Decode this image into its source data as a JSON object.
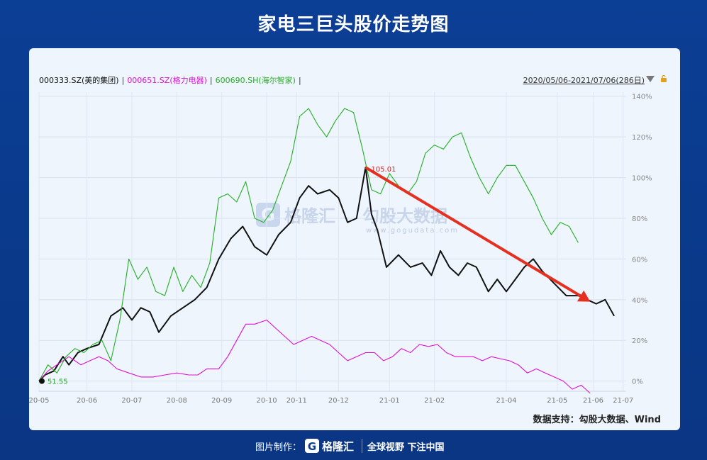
{
  "page": {
    "title": "家电三巨头股价走势图"
  },
  "legend": {
    "items": [
      {
        "label": "000333.SZ(美的集团)",
        "color": "#111111"
      },
      {
        "label": "000651.SZ(格力电器)",
        "color": "#e010d0"
      },
      {
        "label": "600690.SH(海尔智家)",
        "color": "#22b022"
      }
    ],
    "separator": "|",
    "date_range": "2020/05/06-2021/07/06(286日)"
  },
  "annotations": {
    "peak_label": "105.01",
    "start_label": "51.55"
  },
  "source": "数据支持：勾股大数据、Wind",
  "footer": {
    "credit": "图片制作：",
    "logo_text": "格隆汇",
    "slogan": "全球视野 下注中国"
  },
  "watermark": {
    "brand_cn": "格隆汇",
    "brand_cn2": "勾股大数据",
    "url": "www.gogudata.com"
  },
  "colors": {
    "background": "#0b3f95",
    "card": "#eef5fd",
    "trend_arrow": "#e53020"
  },
  "chart_data": {
    "type": "line",
    "title": "家电三巨头股价走势图",
    "x_ticks": [
      "20-05",
      "20-06",
      "20-07",
      "20-08",
      "20-09",
      "20-10",
      "20-11",
      "20-12",
      "21-01",
      "21-02",
      "21-04",
      "21-05",
      "21-06",
      "21-07"
    ],
    "y_ticks": [
      "0%",
      "20%",
      "40%",
      "60%",
      "80%",
      "100%",
      "120%",
      "140%"
    ],
    "ylim": [
      -5,
      142
    ],
    "y_unit": "%",
    "grid": true,
    "legend_position": "top-left",
    "series": [
      {
        "name": "000333.SZ(美的集团)",
        "color": "#111111",
        "points": [
          [
            0,
            0
          ],
          [
            0.02,
            3
          ],
          [
            0.05,
            5
          ],
          [
            0.08,
            12
          ],
          [
            0.1,
            8
          ],
          [
            0.13,
            14
          ],
          [
            0.16,
            16
          ],
          [
            0.2,
            18
          ],
          [
            0.24,
            32
          ],
          [
            0.28,
            36
          ],
          [
            0.31,
            30
          ],
          [
            0.34,
            36
          ],
          [
            0.37,
            34
          ],
          [
            0.4,
            24
          ],
          [
            0.44,
            32
          ],
          [
            0.48,
            36
          ],
          [
            0.52,
            40
          ],
          [
            0.56,
            46
          ],
          [
            0.6,
            60
          ],
          [
            0.64,
            70
          ],
          [
            0.68,
            76
          ],
          [
            0.72,
            66
          ],
          [
            0.76,
            62
          ],
          [
            0.8,
            72
          ],
          [
            0.84,
            78
          ],
          [
            0.87,
            90
          ],
          [
            0.9,
            96
          ],
          [
            0.93,
            92
          ],
          [
            0.97,
            94
          ],
          [
            1.0,
            90
          ],
          [
            1.03,
            78
          ],
          [
            1.06,
            80
          ],
          [
            1.09,
            105.01
          ],
          [
            1.11,
            82
          ],
          [
            1.13,
            74
          ],
          [
            1.16,
            56
          ],
          [
            1.2,
            62
          ],
          [
            1.24,
            56
          ],
          [
            1.28,
            58
          ],
          [
            1.31,
            52
          ],
          [
            1.34,
            64
          ],
          [
            1.37,
            56
          ],
          [
            1.4,
            52
          ],
          [
            1.43,
            58
          ],
          [
            1.46,
            56
          ],
          [
            1.5,
            44
          ],
          [
            1.53,
            50
          ],
          [
            1.56,
            44
          ],
          [
            1.59,
            50
          ],
          [
            1.62,
            56
          ],
          [
            1.65,
            60
          ],
          [
            1.68,
            54
          ],
          [
            1.72,
            48
          ],
          [
            1.76,
            42
          ],
          [
            1.8,
            42
          ],
          [
            1.83,
            40
          ],
          [
            1.86,
            38
          ],
          [
            1.89,
            40
          ],
          [
            1.92,
            32
          ]
        ]
      },
      {
        "name": "000651.SZ(格力电器)",
        "color": "#e010d0",
        "points": [
          [
            0,
            0
          ],
          [
            0.03,
            5
          ],
          [
            0.06,
            8
          ],
          [
            0.1,
            12
          ],
          [
            0.14,
            8
          ],
          [
            0.17,
            10
          ],
          [
            0.2,
            12
          ],
          [
            0.23,
            10
          ],
          [
            0.26,
            6
          ],
          [
            0.3,
            4
          ],
          [
            0.34,
            2
          ],
          [
            0.38,
            2
          ],
          [
            0.42,
            3
          ],
          [
            0.46,
            4
          ],
          [
            0.5,
            3
          ],
          [
            0.53,
            3
          ],
          [
            0.56,
            6
          ],
          [
            0.6,
            6
          ],
          [
            0.63,
            12
          ],
          [
            0.66,
            20
          ],
          [
            0.69,
            28
          ],
          [
            0.72,
            28
          ],
          [
            0.76,
            30
          ],
          [
            0.79,
            26
          ],
          [
            0.82,
            22
          ],
          [
            0.85,
            18
          ],
          [
            0.88,
            20
          ],
          [
            0.91,
            22
          ],
          [
            0.94,
            20
          ],
          [
            0.97,
            18
          ],
          [
            1.0,
            14
          ],
          [
            1.03,
            10
          ],
          [
            1.06,
            12
          ],
          [
            1.09,
            14
          ],
          [
            1.12,
            14
          ],
          [
            1.15,
            10
          ],
          [
            1.18,
            12
          ],
          [
            1.21,
            16
          ],
          [
            1.24,
            14
          ],
          [
            1.27,
            18
          ],
          [
            1.3,
            17
          ],
          [
            1.33,
            18
          ],
          [
            1.36,
            14
          ],
          [
            1.39,
            12
          ],
          [
            1.42,
            12
          ],
          [
            1.45,
            12
          ],
          [
            1.48,
            10
          ],
          [
            1.51,
            12
          ],
          [
            1.54,
            11
          ],
          [
            1.57,
            10
          ],
          [
            1.6,
            8
          ],
          [
            1.63,
            4
          ],
          [
            1.66,
            6
          ],
          [
            1.69,
            4
          ],
          [
            1.72,
            2
          ],
          [
            1.75,
            0
          ],
          [
            1.78,
            -4
          ],
          [
            1.81,
            -2
          ],
          [
            1.84,
            -6
          ]
        ]
      },
      {
        "name": "600690.SH(海尔智家)",
        "color": "#22b022",
        "points": [
          [
            0,
            0
          ],
          [
            0.03,
            8
          ],
          [
            0.06,
            4
          ],
          [
            0.09,
            12
          ],
          [
            0.12,
            16
          ],
          [
            0.15,
            14
          ],
          [
            0.18,
            18
          ],
          [
            0.21,
            20
          ],
          [
            0.24,
            10
          ],
          [
            0.27,
            30
          ],
          [
            0.3,
            60
          ],
          [
            0.33,
            50
          ],
          [
            0.36,
            56
          ],
          [
            0.39,
            44
          ],
          [
            0.42,
            42
          ],
          [
            0.45,
            56
          ],
          [
            0.48,
            44
          ],
          [
            0.51,
            52
          ],
          [
            0.54,
            46
          ],
          [
            0.57,
            58
          ],
          [
            0.6,
            90
          ],
          [
            0.63,
            92
          ],
          [
            0.66,
            88
          ],
          [
            0.69,
            98
          ],
          [
            0.72,
            80
          ],
          [
            0.75,
            78
          ],
          [
            0.78,
            84
          ],
          [
            0.81,
            96
          ],
          [
            0.84,
            108
          ],
          [
            0.87,
            130
          ],
          [
            0.9,
            134
          ],
          [
            0.93,
            126
          ],
          [
            0.96,
            120
          ],
          [
            0.99,
            128
          ],
          [
            1.02,
            134
          ],
          [
            1.05,
            132
          ],
          [
            1.08,
            114
          ],
          [
            1.11,
            94
          ],
          [
            1.14,
            92
          ],
          [
            1.17,
            102
          ],
          [
            1.2,
            96
          ],
          [
            1.23,
            92
          ],
          [
            1.26,
            98
          ],
          [
            1.29,
            112
          ],
          [
            1.32,
            116
          ],
          [
            1.35,
            114
          ],
          [
            1.38,
            120
          ],
          [
            1.41,
            122
          ],
          [
            1.44,
            110
          ],
          [
            1.47,
            100
          ],
          [
            1.5,
            92
          ],
          [
            1.53,
            100
          ],
          [
            1.56,
            106
          ],
          [
            1.59,
            106
          ],
          [
            1.62,
            98
          ],
          [
            1.65,
            90
          ],
          [
            1.68,
            80
          ],
          [
            1.71,
            72
          ],
          [
            1.74,
            78
          ],
          [
            1.77,
            76
          ],
          [
            1.8,
            68
          ]
        ]
      }
    ],
    "trend_arrow": {
      "from": [
        1.09,
        105.01
      ],
      "to": [
        1.84,
        39
      ]
    },
    "peak": {
      "x": 1.09,
      "y": 105.01,
      "label": "105.01"
    },
    "start": {
      "x": 0,
      "y": 0,
      "label": "51.55"
    }
  }
}
